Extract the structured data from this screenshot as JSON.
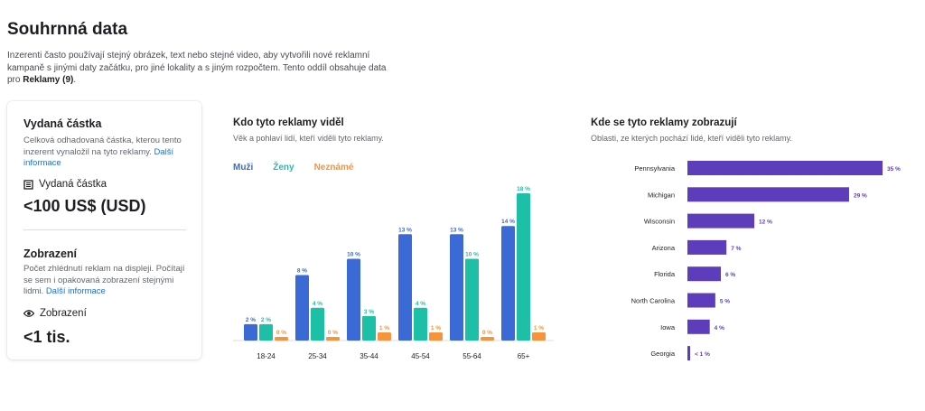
{
  "page": {
    "title": "Souhrnná data",
    "intro_text": "Inzerenti často používají stejný obrázek, text nebo stejné video, aby vytvořili nové reklamní kampaně s jinými daty začátku, pro jiné lokality a s jiným rozpočtem. Tento oddíl obsahuje data pro ",
    "intro_bold": "Reklamy (9)",
    "intro_end": "."
  },
  "spend": {
    "title": "Vydaná částka",
    "description": "Celková odhadovaná částka, kterou tento inzerent vynaložil na tyto reklamy. ",
    "link": "Další informace",
    "label": "Vydaná částka",
    "value": "<100 US$ (USD)"
  },
  "impressions": {
    "title": "Zobrazení",
    "description": "Počet zhlédnutí reklam na displeji. Počítají se sem i opakovaná zobrazení stejnými lidmi. ",
    "link": "Další informace",
    "label": "Zobrazení",
    "value": "<1 tis."
  },
  "demographics": {
    "title": "Kdo tyto reklamy viděl",
    "subtitle": "Věk a pohlaví lidí, kteří viděli tyto reklamy.",
    "legend": {
      "men": "Muži",
      "women": "Ženy",
      "unknown": "Neznámé"
    }
  },
  "regions": {
    "title": "Kde se tyto reklamy zobrazují",
    "subtitle": "Oblasti, ze kterých pochází lidé, kteří viděli tyto reklamy."
  },
  "colors": {
    "men": "#3b6ad6",
    "women": "#1dbfa6",
    "unknown": "#f7923d",
    "region": "#5e3dbd"
  },
  "chart_data": [
    {
      "type": "bar",
      "title": "Kdo tyto reklamy viděl",
      "categories": [
        "18-24",
        "25-34",
        "35-44",
        "45-54",
        "55-64",
        "65+"
      ],
      "series": [
        {
          "name": "Muži",
          "values": [
            2,
            8,
            10,
            13,
            13,
            14
          ],
          "labels": [
            "2 %",
            "8 %",
            "10 %",
            "13 %",
            "13 %",
            "14 %"
          ]
        },
        {
          "name": "Ženy",
          "values": [
            2,
            4,
            3,
            4,
            10,
            18
          ],
          "labels": [
            "2 %",
            "4 %",
            "3 %",
            "4 %",
            "10 %",
            "18 %"
          ]
        },
        {
          "name": "Neznámé",
          "values": [
            0,
            0,
            1,
            1,
            0,
            1
          ],
          "labels": [
            "0 %",
            "0 %",
            "1 %",
            "1 %",
            "0 %",
            "1 %"
          ]
        }
      ],
      "ylim": [
        0,
        18
      ]
    },
    {
      "type": "bar",
      "orientation": "horizontal",
      "title": "Kde se tyto reklamy zobrazují",
      "categories": [
        "Pennsylvania",
        "Michigan",
        "Wisconsin",
        "Arizona",
        "Florida",
        "North Carolina",
        "Iowa",
        "Georgia"
      ],
      "values": [
        35,
        29,
        12,
        7,
        6,
        5,
        4,
        0.5
      ],
      "labels": [
        "35 %",
        "29 %",
        "12 %",
        "7 %",
        "6 %",
        "5 %",
        "4 %",
        "< 1 %"
      ],
      "xlim": [
        0,
        35
      ]
    }
  ]
}
